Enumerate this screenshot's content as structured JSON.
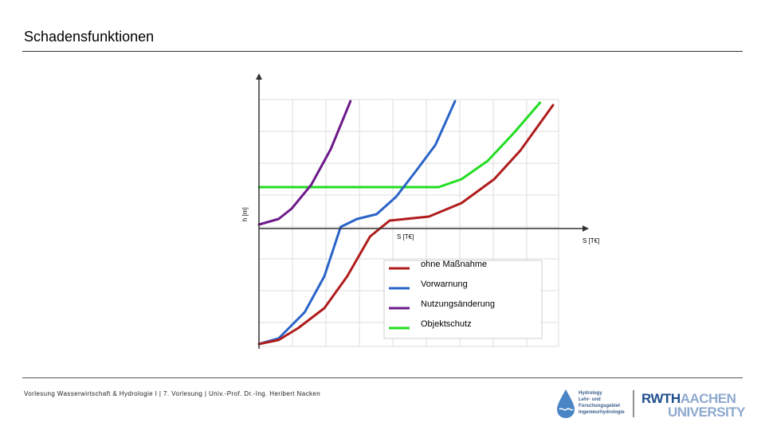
{
  "slide": {
    "title": "Schadensfunktionen",
    "footer": "Vorlesung Wasserwirtschaft & Hydrologie I | 7. Vorlesung | Univ.-Prof. Dr.-Ing. Heribert Nacken"
  },
  "logos": {
    "hydrology_lines": [
      "Hydrology",
      "Lehr- und",
      "Forschungsgebiet",
      "Ingenieurhydrologie"
    ],
    "rwth_line1": [
      "RWTH",
      "AACHEN"
    ],
    "rwth_line2": "UNIVERSITY"
  },
  "colors": {
    "ohne": "#b01c1c",
    "vorwarnung": "#2a64c8",
    "nutzung": "#6e1a8a",
    "objekt": "#22dd22",
    "grid": "#dcdcdc",
    "axis": "#333333"
  },
  "chart_data": {
    "type": "line",
    "ylabel": "h [m]",
    "xlabel_bottom": "S [T€]",
    "xlabel_right": "S [T€]",
    "legend": [
      "ohne Maßnahme",
      "Vorwarnung",
      "Nutzungsänderung",
      "Objektschutz"
    ],
    "legend_position": "bottom-center",
    "grid": true,
    "series": [
      {
        "name": "ohne Maßnahme",
        "color_key": "ohne",
        "points": [
          [
            0,
            -1.45
          ],
          [
            0.06,
            -1.4
          ],
          [
            0.12,
            -1.25
          ],
          [
            0.2,
            -1.0
          ],
          [
            0.27,
            -0.6
          ],
          [
            0.34,
            -0.1
          ],
          [
            0.4,
            0.1
          ],
          [
            0.52,
            0.15
          ],
          [
            0.62,
            0.32
          ],
          [
            0.72,
            0.62
          ],
          [
            0.8,
            0.98
          ],
          [
            0.9,
            1.55
          ]
        ]
      },
      {
        "name": "Vorwarnung",
        "color_key": "vorwarnung",
        "points": [
          [
            0,
            -1.45
          ],
          [
            0.06,
            -1.38
          ],
          [
            0.14,
            -1.05
          ],
          [
            0.2,
            -0.6
          ],
          [
            0.25,
            0.02
          ],
          [
            0.3,
            0.12
          ],
          [
            0.36,
            0.18
          ],
          [
            0.42,
            0.4
          ],
          [
            0.48,
            0.72
          ],
          [
            0.54,
            1.05
          ],
          [
            0.6,
            1.6
          ]
        ]
      },
      {
        "name": "Nutzungsänderung",
        "color_key": "nutzung",
        "points": [
          [
            0,
            0.05
          ],
          [
            0.06,
            0.12
          ],
          [
            0.1,
            0.25
          ],
          [
            0.16,
            0.55
          ],
          [
            0.22,
            1.0
          ],
          [
            0.28,
            1.6
          ]
        ]
      },
      {
        "name": "Objektschutz",
        "color_key": "objekt",
        "points": [
          [
            0,
            0.52
          ],
          [
            0.55,
            0.52
          ],
          [
            0.62,
            0.62
          ],
          [
            0.7,
            0.85
          ],
          [
            0.78,
            1.2
          ],
          [
            0.86,
            1.58
          ]
        ]
      }
    ]
  }
}
